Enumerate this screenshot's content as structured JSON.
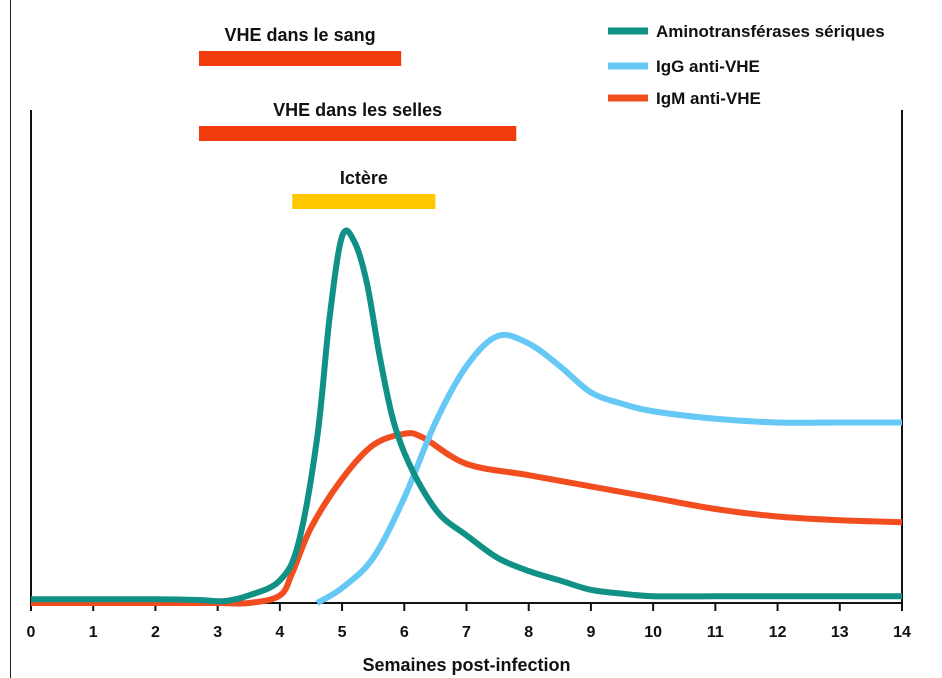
{
  "chart_data": {
    "type": "line",
    "xlabel": "Semaines post-infection",
    "xlim": [
      0,
      14
    ],
    "x_ticks": [
      0,
      1,
      2,
      3,
      4,
      5,
      6,
      7,
      8,
      9,
      10,
      11,
      12,
      13,
      14
    ],
    "ylim": [
      0,
      100
    ],
    "y_ticks_shown": false,
    "grid": false,
    "legend": "top-right",
    "series": [
      {
        "name": "Aminotransférases sériques",
        "color": "#119185",
        "x": [
          0,
          1,
          2,
          2.7,
          3.1,
          3.5,
          4.0,
          4.3,
          4.6,
          4.8,
          5.0,
          5.2,
          5.4,
          5.6,
          5.8,
          6.0,
          6.3,
          6.6,
          7.0,
          7.5,
          8.0,
          8.5,
          9.0,
          9.5,
          10.0,
          11.0,
          12.0,
          13.0,
          14.0
        ],
        "values": [
          1,
          1,
          1,
          0.8,
          0.5,
          2,
          6,
          16,
          44,
          76,
          97.5,
          96,
          85,
          66,
          50,
          40,
          30,
          23,
          18,
          12,
          8.5,
          6,
          3.5,
          2.5,
          1.8,
          1.8,
          1.8,
          1.8,
          1.8
        ]
      },
      {
        "name": "IgG anti-VHE",
        "color": "#66C8F5",
        "x": [
          4.6,
          5.0,
          5.5,
          6.0,
          6.5,
          7.0,
          7.5,
          8.0,
          8.5,
          9.0,
          9.5,
          10.0,
          11.0,
          12.0,
          13.0,
          14.0
        ],
        "values": [
          0,
          4,
          12,
          28,
          48,
          63,
          71,
          69,
          63,
          56,
          53,
          51,
          49,
          48,
          48,
          48
        ]
      },
      {
        "name": "IgM anti-VHE",
        "color": "#F24D1F",
        "x": [
          0,
          1,
          2,
          3,
          3.5,
          4.0,
          4.2,
          4.5,
          5.0,
          5.5,
          6.0,
          6.3,
          7.0,
          8.0,
          9.0,
          10.0,
          11.0,
          12.0,
          13.0,
          14.0
        ],
        "values": [
          0,
          0,
          0,
          0,
          0,
          2,
          8,
          20,
          33,
          42,
          45,
          44,
          37,
          34,
          31,
          28,
          25,
          23,
          22,
          21.5
        ]
      }
    ],
    "bars": [
      {
        "label": "VHE dans le sang",
        "start": 2.7,
        "end": 5.95,
        "color": "#F23C0D"
      },
      {
        "label": "VHE dans les selles",
        "start": 2.7,
        "end": 7.8,
        "color": "#F23C0D"
      },
      {
        "label": "Ictère",
        "start": 4.2,
        "end": 6.5,
        "color": "#FFC700"
      }
    ]
  }
}
